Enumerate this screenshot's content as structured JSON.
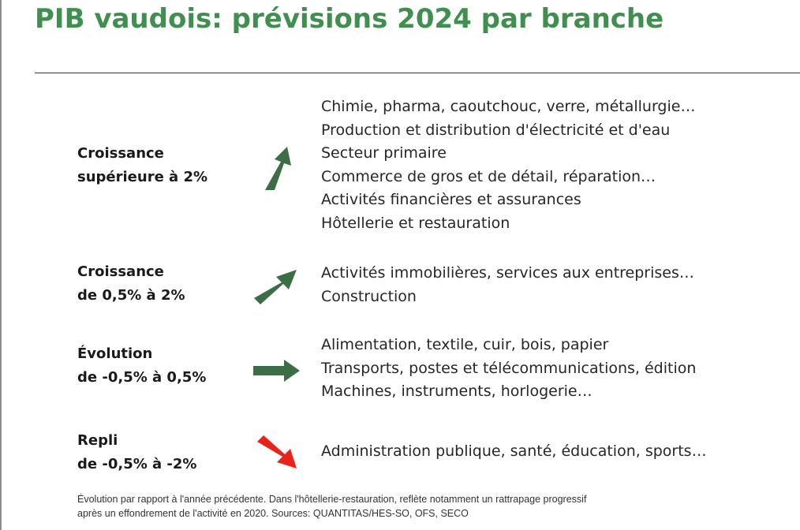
{
  "title": "PIB vaudois: prévisions 2024 par branche",
  "colors": {
    "accent": "#3f8f4e",
    "arrow_green": "#3b6e45",
    "arrow_red": "#e8231c"
  },
  "sections": [
    {
      "label_line1": "Croissance",
      "label_line2": "supérieure à 2%",
      "arrow": "arrow-up-right-steep-icon",
      "items": [
        "Chimie, pharma, caoutchouc, verre, métallurgie…",
        "Production et distribution d'électricité et d'eau",
        "Secteur primaire",
        "Commerce de gros et de détail, réparation…",
        "Activités financières et assurances",
        "Hôtellerie et restauration"
      ]
    },
    {
      "label_line1": "Croissance",
      "label_line2": "de 0,5% à 2%",
      "arrow": "arrow-up-right-icon",
      "items": [
        "Activités immobilières, services aux entreprises…",
        "Construction"
      ]
    },
    {
      "label_line1": "Évolution",
      "label_line2": "de -0,5% à 0,5%",
      "arrow": "arrow-right-icon",
      "items": [
        "Alimentation, textile, cuir, bois, papier",
        "Transports, postes et télécommunications, édition",
        "Machines, instruments, horlogerie…"
      ]
    },
    {
      "label_line1": "Repli",
      "label_line2": "de -0,5% à -2%",
      "arrow": "arrow-down-right-icon",
      "items": [
        "Administration publique, santé, éducation, sports…"
      ]
    }
  ],
  "footnote": {
    "line1": "Évolution par rapport à l'année précédente. Dans l'hôtellerie-restauration, reflète notamment un rattrapage progressif",
    "line2": "après un effondrement de l'activité en 2020. Sources: QUANTITAS/HES-SO, OFS, SECO"
  }
}
